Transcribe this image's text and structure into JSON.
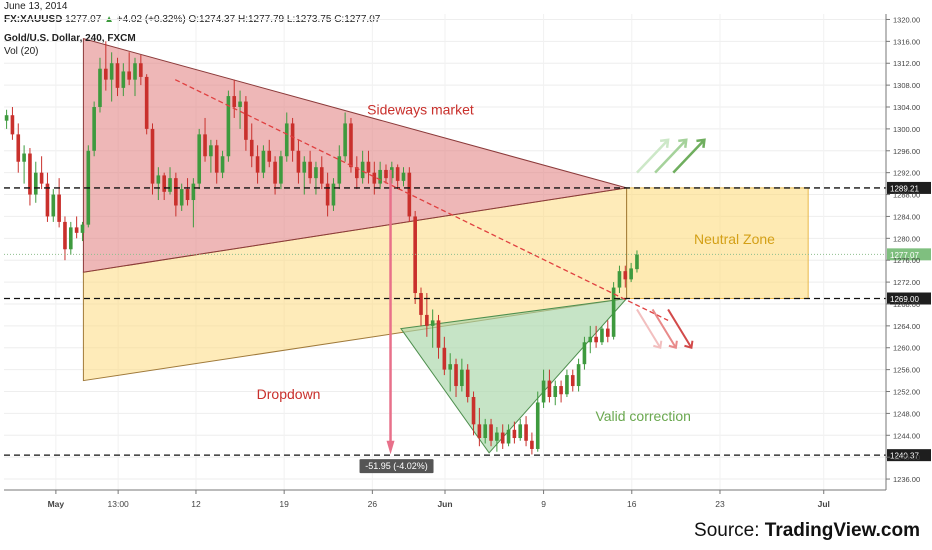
{
  "header": {
    "date": "June 13, 2014",
    "symbol": "FX:XAUUSD",
    "last": "1277.07",
    "change_arrow": "▲",
    "change": "+4.02 (+0.32%)",
    "open": "O:1274.37",
    "high": "H:1277.79",
    "low": "L:1273.75",
    "close": "C:1277.07",
    "instrument": "Gold/U.S. Dollar, 240, FXCM",
    "volume": "Vol (20)"
  },
  "source": {
    "prefix": "Source: ",
    "brand": "TradingView.com"
  },
  "colors": {
    "up": "#3e9a3e",
    "down": "#c9302c",
    "triangle_fill": "#e07b7b",
    "zone_fill": "#fdd873",
    "correction_fill": "#a8d5a8",
    "price_tag": "#7fbf7f"
  },
  "chart_data": {
    "type": "candlestick",
    "y_axis": {
      "min": 1234,
      "max": 1321,
      "ticks": [
        1236,
        1240,
        1244,
        1248,
        1252,
        1256,
        1260,
        1264,
        1268,
        1272,
        1276,
        1280,
        1284,
        1288,
        1292,
        1296,
        1300,
        1304,
        1308,
        1312,
        1316,
        1320
      ],
      "tick_labels": [
        "1236.00",
        "1240.00",
        "1244.00",
        "1248.00",
        "1252.00",
        "1256.00",
        "1260.00",
        "1264.00",
        "1268.00",
        "1272.00",
        "1276.00",
        "1280.00",
        "1284.00",
        "1288.00",
        "1292.00",
        "1296.00",
        "1300.00",
        "1304.00",
        "1308.00",
        "1312.00",
        "1316.00",
        "1320.00"
      ],
      "position": "right"
    },
    "x_axis": {
      "labels": [
        {
          "text": "May",
          "pos": 10,
          "bold": true
        },
        {
          "text": "13:00",
          "pos": 22
        },
        {
          "text": "12",
          "pos": 37
        },
        {
          "text": "19",
          "pos": 54
        },
        {
          "text": "26",
          "pos": 71
        },
        {
          "text": "Jun",
          "pos": 85,
          "bold": true
        },
        {
          "text": "9",
          "pos": 104
        },
        {
          "text": "16",
          "pos": 121
        },
        {
          "text": "23",
          "pos": 138
        },
        {
          "text": "Jul",
          "pos": 158,
          "bold": true
        }
      ],
      "min": 0,
      "max": 170
    },
    "price_levels": [
      {
        "value": 1289.21,
        "label": "1289.21"
      },
      {
        "value": 1269.0,
        "label": "1269.00"
      },
      {
        "value": 1240.37,
        "label": "1240.37"
      }
    ],
    "last_price": {
      "value": 1277.07,
      "label": "1277.07"
    },
    "annotations": [
      {
        "text": "Sideways market",
        "color": "#c9302c"
      },
      {
        "text": "Neutral Zone",
        "color": "#d4a017"
      },
      {
        "text": "Dropdown",
        "color": "#c9302c"
      },
      {
        "text": "Valid correction",
        "color": "#6aa84f"
      },
      {
        "text": "-51.95 (-4.02%)",
        "color": "#ffffff"
      }
    ],
    "candles": [
      {
        "o": 1301.5,
        "h": 1303.5,
        "l": 1300.0,
        "c": 1302.5
      },
      {
        "o": 1302.5,
        "h": 1304.0,
        "l": 1298.0,
        "c": 1299.0
      },
      {
        "o": 1299.0,
        "h": 1301.0,
        "l": 1292.0,
        "c": 1294.0
      },
      {
        "o": 1294.0,
        "h": 1297.0,
        "l": 1290.0,
        "c": 1295.5
      },
      {
        "o": 1295.5,
        "h": 1296.5,
        "l": 1286.0,
        "c": 1288.0
      },
      {
        "o": 1288.0,
        "h": 1294.0,
        "l": 1286.5,
        "c": 1292.0
      },
      {
        "o": 1292.0,
        "h": 1295.0,
        "l": 1289.0,
        "c": 1290.0
      },
      {
        "o": 1290.0,
        "h": 1292.0,
        "l": 1283.0,
        "c": 1284.0
      },
      {
        "o": 1284.0,
        "h": 1289.0,
        "l": 1283.0,
        "c": 1288.0
      },
      {
        "o": 1288.0,
        "h": 1291.0,
        "l": 1282.0,
        "c": 1283.0
      },
      {
        "o": 1283.0,
        "h": 1284.0,
        "l": 1276.0,
        "c": 1278.0
      },
      {
        "o": 1278.0,
        "h": 1283.0,
        "l": 1277.0,
        "c": 1282.0
      },
      {
        "o": 1282.0,
        "h": 1284.0,
        "l": 1280.0,
        "c": 1281.0
      },
      {
        "o": 1281.0,
        "h": 1283.0,
        "l": 1279.5,
        "c": 1282.5
      },
      {
        "o": 1282.5,
        "h": 1297.0,
        "l": 1282.0,
        "c": 1296.0
      },
      {
        "o": 1296.0,
        "h": 1305.0,
        "l": 1295.0,
        "c": 1304.0
      },
      {
        "o": 1304.0,
        "h": 1313.0,
        "l": 1303.0,
        "c": 1311.0
      },
      {
        "o": 1311.0,
        "h": 1316.0,
        "l": 1307.0,
        "c": 1309.0
      },
      {
        "o": 1309.0,
        "h": 1314.0,
        "l": 1305.0,
        "c": 1312.0
      },
      {
        "o": 1312.0,
        "h": 1313.0,
        "l": 1306.0,
        "c": 1307.5
      },
      {
        "o": 1307.5,
        "h": 1312.0,
        "l": 1306.0,
        "c": 1310.5
      },
      {
        "o": 1310.5,
        "h": 1314.0,
        "l": 1308.0,
        "c": 1309.0
      },
      {
        "o": 1309.0,
        "h": 1313.0,
        "l": 1306.0,
        "c": 1312.0
      },
      {
        "o": 1312.0,
        "h": 1313.5,
        "l": 1308.0,
        "c": 1309.5
      },
      {
        "o": 1309.5,
        "h": 1310.0,
        "l": 1299.0,
        "c": 1300.0
      },
      {
        "o": 1300.0,
        "h": 1301.0,
        "l": 1288.0,
        "c": 1290.0
      },
      {
        "o": 1290.0,
        "h": 1293.0,
        "l": 1287.0,
        "c": 1291.5
      },
      {
        "o": 1291.5,
        "h": 1292.0,
        "l": 1287.0,
        "c": 1288.5
      },
      {
        "o": 1288.5,
        "h": 1293.0,
        "l": 1288.0,
        "c": 1291.0
      },
      {
        "o": 1291.0,
        "h": 1292.0,
        "l": 1284.0,
        "c": 1286.0
      },
      {
        "o": 1286.0,
        "h": 1290.0,
        "l": 1285.0,
        "c": 1289.0
      },
      {
        "o": 1289.0,
        "h": 1291.0,
        "l": 1286.0,
        "c": 1287.0
      },
      {
        "o": 1287.0,
        "h": 1291.0,
        "l": 1282.0,
        "c": 1290.0
      },
      {
        "o": 1290.0,
        "h": 1300.0,
        "l": 1289.0,
        "c": 1299.0
      },
      {
        "o": 1299.0,
        "h": 1302.0,
        "l": 1294.0,
        "c": 1295.0
      },
      {
        "o": 1295.0,
        "h": 1298.0,
        "l": 1292.0,
        "c": 1297.0
      },
      {
        "o": 1297.0,
        "h": 1298.0,
        "l": 1290.0,
        "c": 1292.0
      },
      {
        "o": 1292.0,
        "h": 1296.0,
        "l": 1291.0,
        "c": 1295.0
      },
      {
        "o": 1295.0,
        "h": 1307.0,
        "l": 1294.0,
        "c": 1306.0
      },
      {
        "o": 1306.0,
        "h": 1309.0,
        "l": 1302.0,
        "c": 1304.0
      },
      {
        "o": 1304.0,
        "h": 1307.0,
        "l": 1300.0,
        "c": 1305.0
      },
      {
        "o": 1305.0,
        "h": 1306.0,
        "l": 1296.0,
        "c": 1298.0
      },
      {
        "o": 1298.0,
        "h": 1301.0,
        "l": 1293.0,
        "c": 1295.0
      },
      {
        "o": 1295.0,
        "h": 1297.0,
        "l": 1290.0,
        "c": 1292.0
      },
      {
        "o": 1292.0,
        "h": 1297.0,
        "l": 1291.0,
        "c": 1296.0
      },
      {
        "o": 1296.0,
        "h": 1298.0,
        "l": 1293.0,
        "c": 1294.0
      },
      {
        "o": 1294.0,
        "h": 1295.0,
        "l": 1288.0,
        "c": 1290.0
      },
      {
        "o": 1290.0,
        "h": 1296.0,
        "l": 1289.0,
        "c": 1295.0
      },
      {
        "o": 1295.0,
        "h": 1303.0,
        "l": 1294.0,
        "c": 1301.0
      },
      {
        "o": 1301.0,
        "h": 1302.0,
        "l": 1294.0,
        "c": 1296.0
      },
      {
        "o": 1296.0,
        "h": 1298.0,
        "l": 1290.0,
        "c": 1292.0
      },
      {
        "o": 1292.0,
        "h": 1295.0,
        "l": 1288.0,
        "c": 1294.0
      },
      {
        "o": 1294.0,
        "h": 1296.0,
        "l": 1290.0,
        "c": 1291.0
      },
      {
        "o": 1291.0,
        "h": 1294.0,
        "l": 1288.0,
        "c": 1293.0
      },
      {
        "o": 1293.0,
        "h": 1295.0,
        "l": 1289.0,
        "c": 1290.0
      },
      {
        "o": 1290.0,
        "h": 1292.0,
        "l": 1284.0,
        "c": 1286.0
      },
      {
        "o": 1286.0,
        "h": 1291.0,
        "l": 1285.0,
        "c": 1290.0
      },
      {
        "o": 1290.0,
        "h": 1297.0,
        "l": 1289.0,
        "c": 1295.0
      },
      {
        "o": 1295.0,
        "h": 1303.0,
        "l": 1294.0,
        "c": 1301.0
      },
      {
        "o": 1301.0,
        "h": 1302.0,
        "l": 1292.0,
        "c": 1293.0
      },
      {
        "o": 1293.0,
        "h": 1295.0,
        "l": 1289.0,
        "c": 1291.0
      },
      {
        "o": 1291.0,
        "h": 1296.0,
        "l": 1290.0,
        "c": 1294.0
      },
      {
        "o": 1294.0,
        "h": 1296.0,
        "l": 1290.0,
        "c": 1292.0
      },
      {
        "o": 1292.0,
        "h": 1294.0,
        "l": 1288.0,
        "c": 1290.0
      },
      {
        "o": 1290.0,
        "h": 1294.0,
        "l": 1289.0,
        "c": 1292.5
      },
      {
        "o": 1292.5,
        "h": 1293.5,
        "l": 1290.0,
        "c": 1291.0
      },
      {
        "o": 1291.0,
        "h": 1294.0,
        "l": 1290.0,
        "c": 1293.0
      },
      {
        "o": 1293.0,
        "h": 1293.5,
        "l": 1289.0,
        "c": 1290.5
      },
      {
        "o": 1290.5,
        "h": 1293.0,
        "l": 1289.5,
        "c": 1292.0
      },
      {
        "o": 1292.0,
        "h": 1293.0,
        "l": 1283.0,
        "c": 1284.0
      },
      {
        "o": 1284.0,
        "h": 1285.0,
        "l": 1268.0,
        "c": 1270.0
      },
      {
        "o": 1270.0,
        "h": 1271.0,
        "l": 1264.0,
        "c": 1266.0
      },
      {
        "o": 1266.0,
        "h": 1270.0,
        "l": 1262.0,
        "c": 1264.0
      },
      {
        "o": 1264.0,
        "h": 1267.0,
        "l": 1260.0,
        "c": 1265.0
      },
      {
        "o": 1265.0,
        "h": 1266.0,
        "l": 1258.0,
        "c": 1260.0
      },
      {
        "o": 1260.0,
        "h": 1262.0,
        "l": 1255.0,
        "c": 1256.0
      },
      {
        "o": 1256.0,
        "h": 1259.0,
        "l": 1252.0,
        "c": 1257.0
      },
      {
        "o": 1257.0,
        "h": 1258.0,
        "l": 1251.0,
        "c": 1253.0
      },
      {
        "o": 1253.0,
        "h": 1258.0,
        "l": 1252.0,
        "c": 1256.0
      },
      {
        "o": 1256.0,
        "h": 1257.0,
        "l": 1250.0,
        "c": 1251.0
      },
      {
        "o": 1251.0,
        "h": 1252.0,
        "l": 1244.0,
        "c": 1246.0
      },
      {
        "o": 1246.0,
        "h": 1249.0,
        "l": 1242.0,
        "c": 1243.5
      },
      {
        "o": 1243.5,
        "h": 1247.0,
        "l": 1242.5,
        "c": 1246.0
      },
      {
        "o": 1246.0,
        "h": 1247.0,
        "l": 1242.0,
        "c": 1243.0
      },
      {
        "o": 1243.0,
        "h": 1245.5,
        "l": 1241.0,
        "c": 1244.5
      },
      {
        "o": 1244.5,
        "h": 1246.0,
        "l": 1241.5,
        "c": 1242.5
      },
      {
        "o": 1242.5,
        "h": 1246.0,
        "l": 1242.0,
        "c": 1245.0
      },
      {
        "o": 1245.0,
        "h": 1246.5,
        "l": 1242.5,
        "c": 1243.5
      },
      {
        "o": 1243.5,
        "h": 1247.0,
        "l": 1243.0,
        "c": 1246.0
      },
      {
        "o": 1246.0,
        "h": 1247.5,
        "l": 1242.0,
        "c": 1243.0
      },
      {
        "o": 1243.0,
        "h": 1244.5,
        "l": 1240.5,
        "c": 1241.5
      },
      {
        "o": 1241.5,
        "h": 1252.0,
        "l": 1241.0,
        "c": 1250.0
      },
      {
        "o": 1250.0,
        "h": 1256.0,
        "l": 1249.0,
        "c": 1254.0
      },
      {
        "o": 1254.0,
        "h": 1256.0,
        "l": 1250.0,
        "c": 1251.0
      },
      {
        "o": 1251.0,
        "h": 1254.0,
        "l": 1249.5,
        "c": 1253.0
      },
      {
        "o": 1253.0,
        "h": 1254.0,
        "l": 1250.0,
        "c": 1251.5
      },
      {
        "o": 1251.5,
        "h": 1256.0,
        "l": 1251.0,
        "c": 1255.0
      },
      {
        "o": 1255.0,
        "h": 1256.0,
        "l": 1252.0,
        "c": 1253.0
      },
      {
        "o": 1253.0,
        "h": 1258.0,
        "l": 1252.0,
        "c": 1257.0
      },
      {
        "o": 1257.0,
        "h": 1262.0,
        "l": 1256.0,
        "c": 1261.0
      },
      {
        "o": 1261.0,
        "h": 1264.0,
        "l": 1259.0,
        "c": 1262.0
      },
      {
        "o": 1262.0,
        "h": 1264.0,
        "l": 1260.0,
        "c": 1261.0
      },
      {
        "o": 1261.0,
        "h": 1264.0,
        "l": 1260.5,
        "c": 1263.5
      },
      {
        "o": 1263.5,
        "h": 1265.0,
        "l": 1261.0,
        "c": 1262.0
      },
      {
        "o": 1262.0,
        "h": 1272.0,
        "l": 1261.5,
        "c": 1271.0
      },
      {
        "o": 1271.0,
        "h": 1275.0,
        "l": 1270.0,
        "c": 1274.0
      },
      {
        "o": 1274.0,
        "h": 1275.0,
        "l": 1271.0,
        "c": 1272.5
      },
      {
        "o": 1272.5,
        "h": 1275.5,
        "l": 1272.0,
        "c": 1274.5
      },
      {
        "o": 1274.37,
        "h": 1277.79,
        "l": 1273.75,
        "c": 1277.07
      }
    ]
  }
}
